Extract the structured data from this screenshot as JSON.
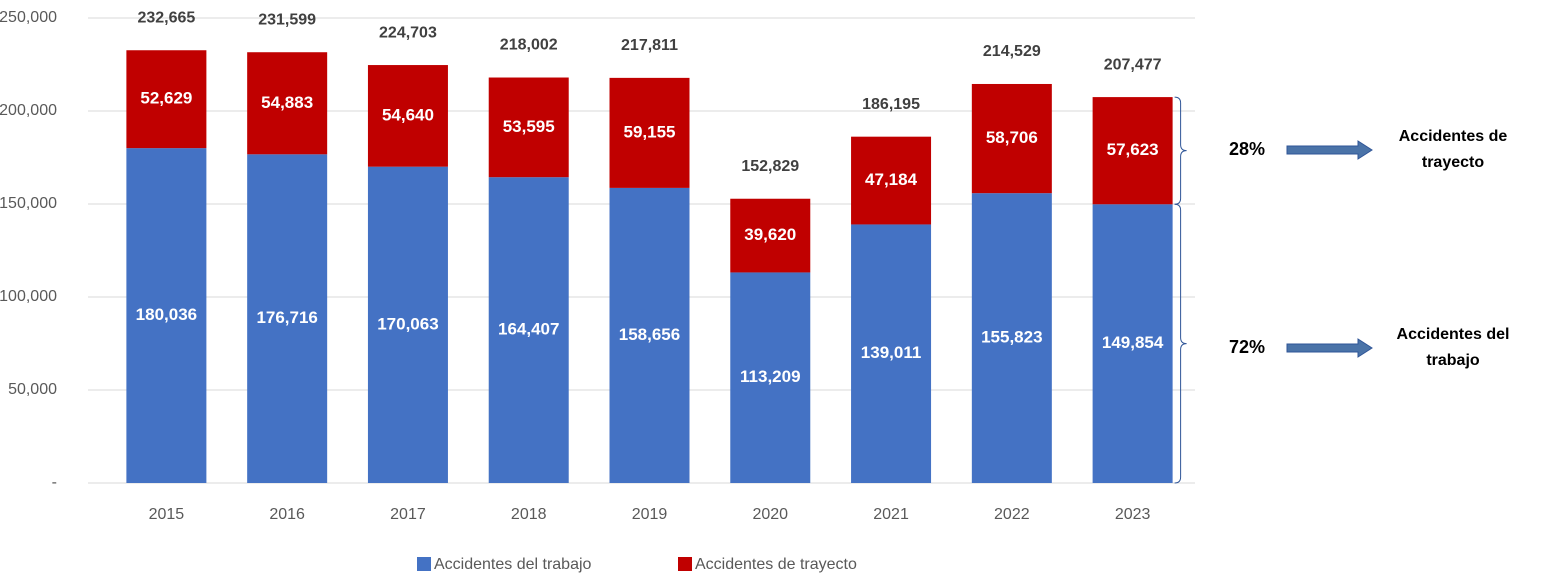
{
  "chart_data": {
    "type": "stacked_bar",
    "categories": [
      "2015",
      "2016",
      "2017",
      "2018",
      "2019",
      "2020",
      "2021",
      "2022",
      "2023"
    ],
    "series": [
      {
        "name": "Accidentes del trabajo",
        "color": "#4472c4",
        "values": [
          180036,
          176716,
          170063,
          164407,
          158656,
          113209,
          139011,
          155823,
          149854
        ],
        "value_labels": [
          "180,036",
          "176,716",
          "170,063",
          "164,407",
          "158,656",
          "113,209",
          "139,011",
          "155,823",
          "149,854"
        ]
      },
      {
        "name": "Accidentes de trayecto",
        "color": "#c00000",
        "values": [
          52629,
          54883,
          54640,
          53595,
          59155,
          39620,
          47184,
          58706,
          57623
        ],
        "value_labels": [
          "52,629",
          "54,883",
          "54,640",
          "53,595",
          "59,155",
          "39,620",
          "47,184",
          "58,706",
          "57,623"
        ]
      }
    ],
    "totals": [
      232665,
      231599,
      224703,
      218002,
      217811,
      152829,
      186195,
      214529,
      207477
    ],
    "total_labels": [
      "232,665",
      "231,599",
      "224,703",
      "218,002",
      "217,811",
      "152,829",
      "186,195",
      "214,529",
      "207,477"
    ],
    "ylim": [
      0,
      250000
    ],
    "yticks": [
      {
        "value": 0,
        "label": "-"
      },
      {
        "value": 50000,
        "label": "50,000"
      },
      {
        "value": 100000,
        "label": "100,000"
      },
      {
        "value": 150000,
        "label": "150,000"
      },
      {
        "value": 200000,
        "label": "200,000"
      },
      {
        "value": 250000,
        "label": "250,000"
      }
    ],
    "grid": true,
    "legend": "bottom",
    "annotations": [
      {
        "percent": "28%",
        "lines": [
          "Accidentes de",
          "trayecto"
        ]
      },
      {
        "percent": "72%",
        "lines": [
          "Accidentes del",
          "trabajo"
        ]
      }
    ]
  }
}
